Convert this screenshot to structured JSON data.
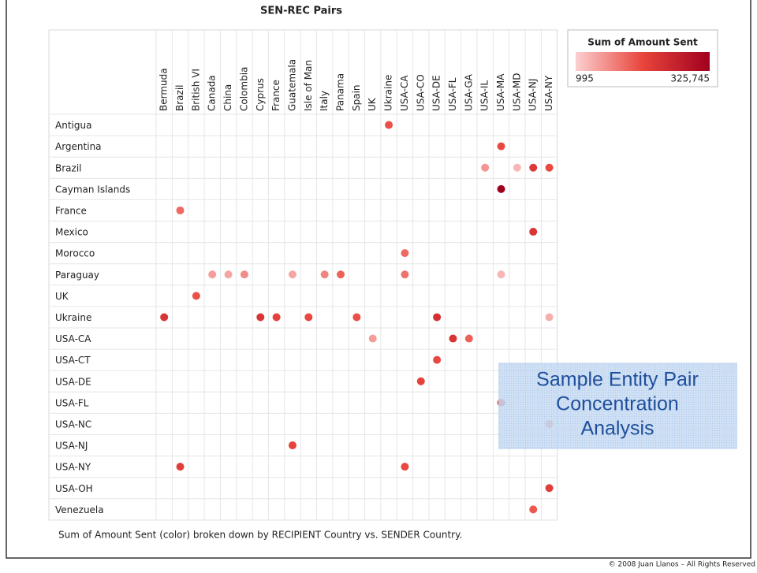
{
  "chart_data": {
    "type": "dot-matrix",
    "title": "SEN-REC Pairs",
    "columns": [
      "Bermuda",
      "Brazil",
      "British VI",
      "Canada",
      "China",
      "Colombia",
      "Cyprus",
      "France",
      "Guatemala",
      "Isle of Man",
      "Italy",
      "Panama",
      "Spain",
      "UK",
      "Ukraine",
      "USA-CA",
      "USA-CO",
      "USA-DE",
      "USA-FL",
      "USA-GA",
      "USA-IL",
      "USA-MA",
      "USA-MD",
      "USA-NJ",
      "USA-NY"
    ],
    "rows": [
      "Antigua",
      "Argentina",
      "Brazil",
      "Cayman Islands",
      "France",
      "Mexico",
      "Morocco",
      "Paraguay",
      "UK",
      "Ukraine",
      "USA-CA",
      "USA-CT",
      "USA-DE",
      "USA-FL",
      "USA-NC",
      "USA-NJ",
      "USA-NY",
      "USA-OH",
      "Venezuela"
    ],
    "points": [
      {
        "sender": "Antigua",
        "recipient": "Ukraine",
        "value": 150000
      },
      {
        "sender": "Argentina",
        "recipient": "USA-MA",
        "value": 160000
      },
      {
        "sender": "Brazil",
        "recipient": "USA-IL",
        "value": 70000
      },
      {
        "sender": "Brazil",
        "recipient": "USA-MD",
        "value": 30000
      },
      {
        "sender": "Brazil",
        "recipient": "USA-NJ",
        "value": 190000
      },
      {
        "sender": "Brazil",
        "recipient": "USA-NY",
        "value": 160000
      },
      {
        "sender": "Cayman Islands",
        "recipient": "USA-MA",
        "value": 325745
      },
      {
        "sender": "France",
        "recipient": "Brazil",
        "value": 120000
      },
      {
        "sender": "Mexico",
        "recipient": "USA-NJ",
        "value": 200000
      },
      {
        "sender": "Morocco",
        "recipient": "USA-CA",
        "value": 120000
      },
      {
        "sender": "Paraguay",
        "recipient": "Canada",
        "value": 60000
      },
      {
        "sender": "Paraguay",
        "recipient": "China",
        "value": 50000
      },
      {
        "sender": "Paraguay",
        "recipient": "Colombia",
        "value": 80000
      },
      {
        "sender": "Paraguay",
        "recipient": "Guatemala",
        "value": 50000
      },
      {
        "sender": "Paraguay",
        "recipient": "Italy",
        "value": 90000
      },
      {
        "sender": "Paraguay",
        "recipient": "Panama",
        "value": 130000
      },
      {
        "sender": "Paraguay",
        "recipient": "USA-CA",
        "value": 110000
      },
      {
        "sender": "Paraguay",
        "recipient": "USA-MA",
        "value": 30000
      },
      {
        "sender": "UK",
        "recipient": "British VI",
        "value": 150000
      },
      {
        "sender": "Ukraine",
        "recipient": "Bermuda",
        "value": 200000
      },
      {
        "sender": "Ukraine",
        "recipient": "Cyprus",
        "value": 200000
      },
      {
        "sender": "Ukraine",
        "recipient": "France",
        "value": 170000
      },
      {
        "sender": "Ukraine",
        "recipient": "Isle of Man",
        "value": 160000
      },
      {
        "sender": "Ukraine",
        "recipient": "Spain",
        "value": 150000
      },
      {
        "sender": "Ukraine",
        "recipient": "USA-DE",
        "value": 210000
      },
      {
        "sender": "Ukraine",
        "recipient": "USA-NY",
        "value": 40000
      },
      {
        "sender": "USA-CA",
        "recipient": "UK",
        "value": 60000
      },
      {
        "sender": "USA-CA",
        "recipient": "USA-FL",
        "value": 200000
      },
      {
        "sender": "USA-CA",
        "recipient": "USA-GA",
        "value": 130000
      },
      {
        "sender": "USA-CT",
        "recipient": "USA-DE",
        "value": 160000
      },
      {
        "sender": "USA-DE",
        "recipient": "USA-CO",
        "value": 170000
      },
      {
        "sender": "USA-FL",
        "recipient": "USA-MA",
        "value": 170000
      },
      {
        "sender": "USA-NC",
        "recipient": "USA-NY",
        "value": 100000
      },
      {
        "sender": "USA-NJ",
        "recipient": "Guatemala",
        "value": 170000
      },
      {
        "sender": "USA-NY",
        "recipient": "Brazil",
        "value": 180000
      },
      {
        "sender": "USA-NY",
        "recipient": "USA-CA",
        "value": 160000
      },
      {
        "sender": "USA-OH",
        "recipient": "USA-NY",
        "value": 180000
      },
      {
        "sender": "Venezuela",
        "recipient": "USA-NJ",
        "value": 140000
      }
    ],
    "legend": {
      "title": "Sum of Amount Sent",
      "range": [
        995,
        {
          "value": 325745,
          "label": "325,745"
        }
      ],
      "colors": [
        "#fbd0d0",
        "#e8453c",
        "#a0001e"
      ]
    },
    "caption": "Sum of Amount Sent (color) broken down by RECIPIENT Country vs. SENDER Country.",
    "overlay_text": [
      "Sample Entity Pair",
      "Concentration",
      "Analysis"
    ],
    "footer": "© 2008 Juan Llanos – All Rights Reserved"
  }
}
